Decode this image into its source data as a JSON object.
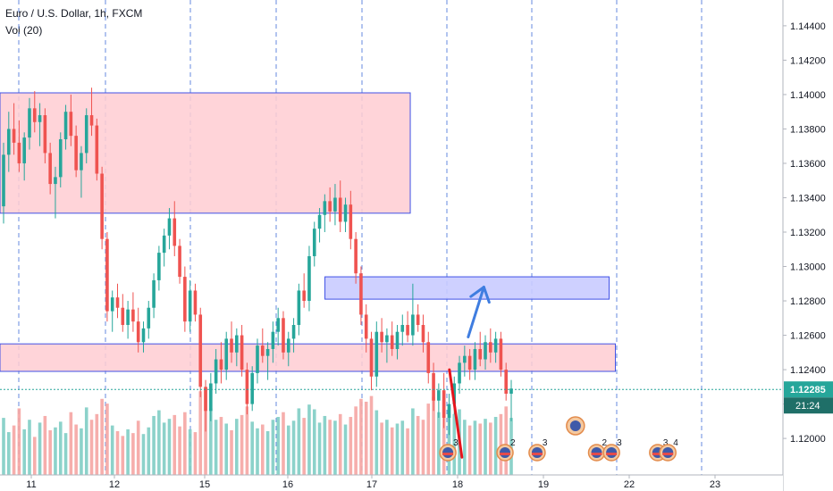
{
  "header": {
    "symbol_line": "Euro / U.S. Dollar, 1h, FXCM",
    "volume_line": "Vol (20)"
  },
  "colors": {
    "up": "#26a69a",
    "down": "#ef5350",
    "vol_up": "#7fcdc4",
    "vol_down": "#f5a5a3",
    "zone_red_fill": "#ffcdd2",
    "zone_blue_fill": "#c9cbff",
    "zone_border": "#3f51e6",
    "session_line": "#3f6ed8",
    "price_line": "#26a69a",
    "arrow_up": "#3f7de0",
    "arrow_down": "#e5141c",
    "axis_text": "#131722",
    "price_badge": "#26a69a",
    "timer_badge": "#1f6f68"
  },
  "chart_data": {
    "type": "candlestick",
    "symbol": "Euro / U.S. Dollar",
    "timeframe": "1h",
    "source": "FXCM",
    "indicator": "Vol (20)",
    "x_ticks": [
      "11",
      "12",
      "15",
      "16",
      "17",
      "18",
      "19",
      "22",
      "23"
    ],
    "y_ticks": [
      "1.14400",
      "1.14200",
      "1.14000",
      "1.13800",
      "1.13600",
      "1.13400",
      "1.13200",
      "1.13000",
      "1.12800",
      "1.12600",
      "1.12400",
      "1.12200",
      "1.12000"
    ],
    "ylim": [
      1.1185,
      1.1455
    ],
    "current_price": "1.12285",
    "countdown": "21:24",
    "zones": [
      {
        "color": "red",
        "x_from": 0,
        "x_to": 52.4,
        "y_from": 1.1331,
        "y_to": 1.1401
      },
      {
        "color": "blue",
        "x_from": 41.5,
        "x_to": 77.8,
        "y_from": 1.1281,
        "y_to": 1.1294
      },
      {
        "color": "red",
        "x_from": 0,
        "x_to": 78.6,
        "y_from": 1.1239,
        "y_to": 1.1255
      }
    ],
    "arrows": [
      {
        "color": "blue",
        "from": [
          59.8,
          1.1259
        ],
        "to": [
          61.8,
          1.1288
        ]
      },
      {
        "color": "red",
        "from": [
          57.4,
          1.124
        ],
        "to": [
          59.0,
          1.1189
        ]
      }
    ],
    "events": [
      {
        "x": 57.2,
        "count": "3"
      },
      {
        "x": 64.5,
        "count": "2"
      },
      {
        "x": 68.6,
        "count": "3"
      },
      {
        "x": 76.2,
        "count": "2"
      },
      {
        "x": 78.1,
        "count": "3"
      },
      {
        "x": 84.0,
        "count": "3"
      },
      {
        "x": 85.3,
        "count": "4"
      }
    ],
    "candles": [
      [
        1.1335,
        1.1372,
        1.1325,
        1.1365
      ],
      [
        1.1365,
        1.139,
        1.1355,
        1.138
      ],
      [
        1.138,
        1.1395,
        1.1365,
        1.1372
      ],
      [
        1.1372,
        1.1385,
        1.1355,
        1.136
      ],
      [
        1.136,
        1.1378,
        1.135,
        1.1375
      ],
      [
        1.1375,
        1.1398,
        1.1368,
        1.1392
      ],
      [
        1.1392,
        1.1402,
        1.1378,
        1.1384
      ],
      [
        1.1384,
        1.1395,
        1.137,
        1.1388
      ],
      [
        1.1388,
        1.1392,
        1.136,
        1.1366
      ],
      [
        1.1366,
        1.1372,
        1.1342,
        1.1348
      ],
      [
        1.1348,
        1.1358,
        1.1328,
        1.1352
      ],
      [
        1.1352,
        1.1378,
        1.1346,
        1.1374
      ],
      [
        1.1374,
        1.1394,
        1.1368,
        1.139
      ],
      [
        1.139,
        1.14,
        1.137,
        1.1376
      ],
      [
        1.1376,
        1.1382,
        1.1352,
        1.1356
      ],
      [
        1.1356,
        1.137,
        1.134,
        1.1366
      ],
      [
        1.1366,
        1.1392,
        1.136,
        1.1388
      ],
      [
        1.1388,
        1.1404,
        1.1376,
        1.1382
      ],
      [
        1.1382,
        1.1386,
        1.135,
        1.1354
      ],
      [
        1.1354,
        1.1358,
        1.131,
        1.1316
      ],
      [
        1.1316,
        1.132,
        1.1268,
        1.1274
      ],
      [
        1.1274,
        1.1286,
        1.1262,
        1.1282
      ],
      [
        1.1282,
        1.129,
        1.127,
        1.1276
      ],
      [
        1.1276,
        1.1284,
        1.1262,
        1.1266
      ],
      [
        1.1266,
        1.128,
        1.1258,
        1.1275
      ],
      [
        1.1275,
        1.1285,
        1.1262,
        1.1268
      ],
      [
        1.1268,
        1.1276,
        1.125,
        1.1256
      ],
      [
        1.1256,
        1.1268,
        1.125,
        1.1264
      ],
      [
        1.1264,
        1.128,
        1.1258,
        1.1276
      ],
      [
        1.1276,
        1.1296,
        1.127,
        1.1292
      ],
      [
        1.1292,
        1.1312,
        1.1286,
        1.1308
      ],
      [
        1.1308,
        1.1322,
        1.13,
        1.1318
      ],
      [
        1.1318,
        1.1334,
        1.131,
        1.1328
      ],
      [
        1.1328,
        1.1338,
        1.1306,
        1.1312
      ],
      [
        1.1312,
        1.1316,
        1.129,
        1.1294
      ],
      [
        1.1294,
        1.13,
        1.1262,
        1.1268
      ],
      [
        1.1268,
        1.1292,
        1.1262,
        1.1286
      ],
      [
        1.1286,
        1.129,
        1.1268,
        1.1272
      ],
      [
        1.1272,
        1.1276,
        1.1224,
        1.123
      ],
      [
        1.123,
        1.1234,
        1.1204,
        1.1216
      ],
      [
        1.1216,
        1.1238,
        1.121,
        1.1232
      ],
      [
        1.1232,
        1.1252,
        1.1226,
        1.1246
      ],
      [
        1.1246,
        1.1256,
        1.1232,
        1.124
      ],
      [
        1.124,
        1.1262,
        1.1234,
        1.1258
      ],
      [
        1.1258,
        1.1268,
        1.1244,
        1.125
      ],
      [
        1.125,
        1.1264,
        1.1242,
        1.126
      ],
      [
        1.126,
        1.1266,
        1.1236,
        1.124
      ],
      [
        1.124,
        1.1244,
        1.1214,
        1.122
      ],
      [
        1.122,
        1.1242,
        1.1216,
        1.1238
      ],
      [
        1.1238,
        1.1258,
        1.1232,
        1.1254
      ],
      [
        1.1254,
        1.1264,
        1.1244,
        1.1248
      ],
      [
        1.1248,
        1.1256,
        1.1234,
        1.1252
      ],
      [
        1.1252,
        1.1268,
        1.1244,
        1.1262
      ],
      [
        1.1262,
        1.1276,
        1.1254,
        1.127
      ],
      [
        1.127,
        1.1274,
        1.1246,
        1.125
      ],
      [
        1.125,
        1.1262,
        1.1242,
        1.1258
      ],
      [
        1.1258,
        1.127,
        1.125,
        1.1266
      ],
      [
        1.1266,
        1.129,
        1.126,
        1.1286
      ],
      [
        1.1286,
        1.1296,
        1.1276,
        1.128
      ],
      [
        1.128,
        1.1312,
        1.1274,
        1.1306
      ],
      [
        1.1306,
        1.1326,
        1.13,
        1.1322
      ],
      [
        1.1322,
        1.1334,
        1.1314,
        1.133
      ],
      [
        1.133,
        1.1342,
        1.132,
        1.1338
      ],
      [
        1.1338,
        1.1346,
        1.1326,
        1.1332
      ],
      [
        1.1332,
        1.1348,
        1.1324,
        1.134
      ],
      [
        1.134,
        1.135,
        1.132,
        1.1326
      ],
      [
        1.1326,
        1.134,
        1.132,
        1.1336
      ],
      [
        1.1336,
        1.1344,
        1.131,
        1.1316
      ],
      [
        1.1316,
        1.132,
        1.129,
        1.1296
      ],
      [
        1.1296,
        1.13,
        1.1266,
        1.1272
      ],
      [
        1.1272,
        1.1278,
        1.125,
        1.1258
      ],
      [
        1.1258,
        1.1262,
        1.1228,
        1.1236
      ],
      [
        1.1236,
        1.1268,
        1.123,
        1.1262
      ],
      [
        1.1262,
        1.127,
        1.125,
        1.1256
      ],
      [
        1.1256,
        1.1264,
        1.1244,
        1.126
      ],
      [
        1.126,
        1.1268,
        1.1248,
        1.1252
      ],
      [
        1.1252,
        1.1266,
        1.1246,
        1.1262
      ],
      [
        1.1262,
        1.1272,
        1.1254,
        1.1266
      ],
      [
        1.1266,
        1.1274,
        1.1256,
        1.126
      ],
      [
        1.126,
        1.129,
        1.1254,
        1.1272
      ],
      [
        1.1272,
        1.1278,
        1.1262,
        1.1266
      ],
      [
        1.1266,
        1.1272,
        1.125,
        1.1256
      ],
      [
        1.1256,
        1.1262,
        1.1232,
        1.1238
      ],
      [
        1.1238,
        1.1244,
        1.1216,
        1.1222
      ],
      [
        1.1222,
        1.1232,
        1.1212,
        1.1228
      ],
      [
        1.1228,
        1.1238,
        1.1206,
        1.1212
      ],
      [
        1.1212,
        1.1226,
        1.1202,
        1.122
      ],
      [
        1.122,
        1.1236,
        1.1214,
        1.1232
      ],
      [
        1.1232,
        1.1248,
        1.1226,
        1.1244
      ],
      [
        1.1244,
        1.1254,
        1.1236,
        1.1248
      ],
      [
        1.1248,
        1.1252,
        1.1234,
        1.124
      ],
      [
        1.124,
        1.1256,
        1.1234,
        1.1252
      ],
      [
        1.1252,
        1.1262,
        1.1242,
        1.1246
      ],
      [
        1.1246,
        1.126,
        1.124,
        1.1256
      ],
      [
        1.1256,
        1.1264,
        1.1244,
        1.125
      ],
      [
        1.125,
        1.1262,
        1.1244,
        1.1258
      ],
      [
        1.1258,
        1.1262,
        1.1236,
        1.124
      ],
      [
        1.124,
        1.1244,
        1.1222,
        1.1226
      ],
      [
        1.1226,
        1.1234,
        1.121,
        1.1229
      ]
    ],
    "volumes": [
      60,
      45,
      52,
      70,
      48,
      58,
      40,
      55,
      62,
      47,
      50,
      56,
      44,
      66,
      53,
      49,
      71,
      58,
      64,
      80,
      75,
      52,
      46,
      41,
      48,
      44,
      57,
      43,
      50,
      62,
      68,
      55,
      59,
      63,
      51,
      66,
      48,
      45,
      88,
      92,
      70,
      58,
      61,
      54,
      47,
      59,
      63,
      72,
      56,
      49,
      53,
      46,
      58,
      61,
      66,
      52,
      57,
      70,
      60,
      74,
      69,
      55,
      62,
      58,
      57,
      64,
      53,
      61,
      72,
      80,
      77,
      83,
      68,
      55,
      58,
      50,
      54,
      57,
      49,
      70,
      62,
      58,
      75,
      82,
      66,
      79,
      71,
      64,
      69,
      58,
      52,
      57,
      54,
      59,
      55,
      61,
      64,
      72,
      60
    ]
  }
}
